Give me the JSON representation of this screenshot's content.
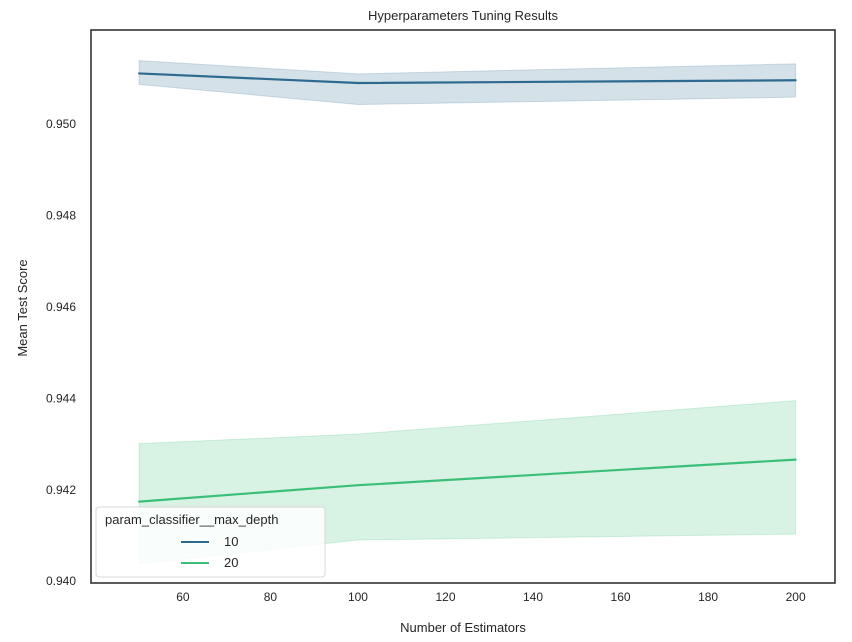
{
  "chart_data": {
    "type": "line",
    "title": "Hyperparameters Tuning Results",
    "xlabel": "Number of Estimators",
    "ylabel": "Mean Test Score",
    "xlim": [
      39,
      209
    ],
    "ylim": [
      0.93995,
      0.95205
    ],
    "x_ticks": [
      60,
      80,
      100,
      120,
      140,
      160,
      180,
      200
    ],
    "y_ticks": [
      0.94,
      0.942,
      0.944,
      0.946,
      0.948,
      0.95
    ],
    "x_tick_labels": [
      "60",
      "80",
      "100",
      "120",
      "140",
      "160",
      "180",
      "200"
    ],
    "y_tick_labels": [
      "0.940",
      "0.942",
      "0.944",
      "0.946",
      "0.948",
      "0.950"
    ],
    "grid": false,
    "legend": {
      "title": "param_classifier__max_depth",
      "placement": "lower-left"
    },
    "x": [
      50,
      100,
      200
    ],
    "series": [
      {
        "name": "10",
        "color": "#2e6a8f",
        "band_color": "#2e6a8f",
        "values": [
          0.9511,
          0.95089,
          0.95095
        ],
        "ci_lower": [
          0.95086,
          0.95042,
          0.95058
        ],
        "ci_upper": [
          0.95138,
          0.95109,
          0.95131
        ]
      },
      {
        "name": "20",
        "color": "#3bbf77",
        "band_color": "#3bbf77",
        "values": [
          0.94173,
          0.94209,
          0.94265
        ],
        "ci_lower": [
          0.94037,
          0.94089,
          0.94102
        ],
        "ci_upper": [
          0.943,
          0.94321,
          0.94394
        ]
      }
    ]
  }
}
